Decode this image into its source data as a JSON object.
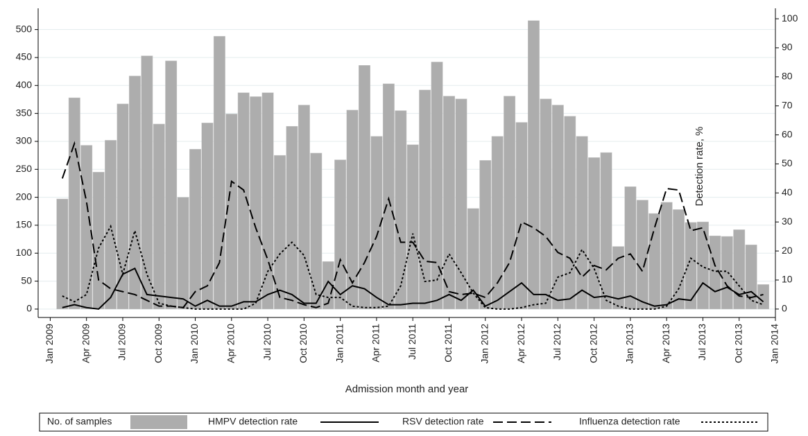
{
  "chart_data": {
    "type": "combo",
    "x_label": "Admission month and year",
    "y2_label": "Detection rate, %",
    "x": [
      "2009-02",
      "2009-03",
      "2009-04",
      "2009-05",
      "2009-06",
      "2009-07",
      "2009-08",
      "2009-09",
      "2009-10",
      "2009-11",
      "2009-12",
      "2010-01",
      "2010-02",
      "2010-03",
      "2010-04",
      "2010-05",
      "2010-06",
      "2010-07",
      "2010-08",
      "2010-09",
      "2010-10",
      "2010-11",
      "2010-12",
      "2011-01",
      "2011-02",
      "2011-03",
      "2011-04",
      "2011-05",
      "2011-06",
      "2011-07",
      "2011-08",
      "2011-09",
      "2011-10",
      "2011-11",
      "2011-12",
      "2012-01",
      "2012-02",
      "2012-03",
      "2012-04",
      "2012-05",
      "2012-06",
      "2012-07",
      "2012-08",
      "2012-09",
      "2012-10",
      "2012-11",
      "2012-12",
      "2013-01",
      "2013-02",
      "2013-03",
      "2013-04",
      "2013-05",
      "2013-06",
      "2013-07",
      "2013-08",
      "2013-09",
      "2013-10",
      "2013-11",
      "2013-12"
    ],
    "xlim": [
      "2008-12",
      "2014-01"
    ],
    "xticks": [
      {
        "value": "2009-01",
        "label": "Jan 2009"
      },
      {
        "value": "2009-04",
        "label": "Apr 2009"
      },
      {
        "value": "2009-07",
        "label": "Jul 2009"
      },
      {
        "value": "2009-10",
        "label": "Oct 2009"
      },
      {
        "value": "2010-01",
        "label": "Jan 2010"
      },
      {
        "value": "2010-04",
        "label": "Apr 2010"
      },
      {
        "value": "2010-07",
        "label": "Jul 2010"
      },
      {
        "value": "2010-10",
        "label": "Oct 2010"
      },
      {
        "value": "2011-01",
        "label": "Jan 2011"
      },
      {
        "value": "2011-04",
        "label": "Apr 2011"
      },
      {
        "value": "2011-07",
        "label": "Jul 2011"
      },
      {
        "value": "2011-10",
        "label": "Oct 2011"
      },
      {
        "value": "2012-01",
        "label": "Jan 2012"
      },
      {
        "value": "2012-04",
        "label": "Apr 2012"
      },
      {
        "value": "2012-07",
        "label": "Jul 2012"
      },
      {
        "value": "2012-10",
        "label": "Oct 2012"
      },
      {
        "value": "2013-01",
        "label": "Jan 2013"
      },
      {
        "value": "2013-04",
        "label": "Apr 2013"
      },
      {
        "value": "2013-07",
        "label": "Jul 2013"
      },
      {
        "value": "2013-10",
        "label": "Oct 2013"
      },
      {
        "value": "2014-01",
        "label": "Jan 2014"
      }
    ],
    "ylim": [
      -15,
      538
    ],
    "yticks": [
      0,
      50,
      100,
      150,
      200,
      250,
      300,
      350,
      400,
      450,
      500
    ],
    "y2lim": [
      -2.9,
      103.6
    ],
    "y2ticks": [
      0,
      10,
      20,
      30,
      40,
      50,
      60,
      70,
      80,
      90,
      100
    ],
    "grid": true,
    "series": [
      {
        "name": "No. of samples",
        "type": "bar",
        "color": "#adadad",
        "values": [
          197,
          378,
          293,
          245,
          302,
          367,
          417,
          453,
          331,
          444,
          200,
          286,
          333,
          488,
          349,
          387,
          380,
          387,
          275,
          327,
          365,
          279,
          85,
          267,
          356,
          436,
          309,
          403,
          355,
          294,
          392,
          442,
          381,
          376,
          180,
          266,
          309,
          381,
          334,
          516,
          376,
          365,
          345,
          309,
          271,
          280,
          112,
          219,
          195,
          171,
          191,
          178,
          155,
          156,
          131,
          130,
          142,
          115,
          44
        ]
      },
      {
        "name": "HMPV detection rate",
        "type": "line",
        "axis": "y2",
        "color": "#000000",
        "style": "solid",
        "values": [
          0.5,
          1.5,
          0.5,
          0,
          4,
          12,
          14,
          5,
          4.5,
          4,
          3.5,
          1,
          3,
          1,
          1,
          2.5,
          2.5,
          5,
          6.5,
          5,
          2,
          2,
          9.5,
          5,
          8,
          7,
          4,
          1.5,
          1.5,
          2,
          2,
          3,
          5,
          3,
          6.5,
          1,
          3,
          6,
          9,
          5,
          5,
          3,
          3.5,
          6.5,
          4,
          4.5,
          3.5,
          4.5,
          2.5,
          1,
          1.5,
          3.5,
          3,
          9,
          6,
          7.5,
          5,
          6,
          2.5
        ]
      },
      {
        "name": "RSV detection rate",
        "type": "line",
        "axis": "y2",
        "color": "#000000",
        "style": "dashed",
        "values": [
          45,
          57,
          37,
          10,
          7,
          6,
          5,
          3,
          1,
          1,
          0.5,
          6,
          8,
          16,
          44,
          41,
          28,
          17,
          4,
          3,
          1.5,
          0.5,
          2,
          17,
          9,
          16,
          25,
          38,
          23,
          23,
          16.5,
          16,
          6,
          5,
          5.5,
          4,
          9,
          16,
          30,
          28,
          25,
          19.5,
          17.5,
          11,
          15,
          13.5,
          17.5,
          19,
          13,
          28,
          41.5,
          41,
          27,
          28,
          15,
          8,
          4.5,
          4,
          5
        ]
      },
      {
        "name": "Influenza detection rate",
        "type": "line",
        "axis": "y2",
        "color": "#000000",
        "style": "dotted",
        "values": [
          4.5,
          2.5,
          5,
          21,
          28.5,
          12,
          27,
          12,
          2,
          1,
          0.5,
          0,
          0,
          0,
          0,
          0,
          2,
          13,
          19,
          23,
          18.5,
          5,
          4,
          4,
          1,
          0.5,
          0.5,
          1,
          8,
          26,
          9.5,
          10,
          19,
          12.5,
          5.5,
          0.5,
          0,
          0,
          0.5,
          1.5,
          2,
          11,
          12.5,
          20.5,
          14,
          3,
          1,
          0,
          0,
          0,
          1,
          7,
          17.5,
          14.5,
          13,
          13,
          8,
          3,
          1.5
        ]
      }
    ]
  }
}
